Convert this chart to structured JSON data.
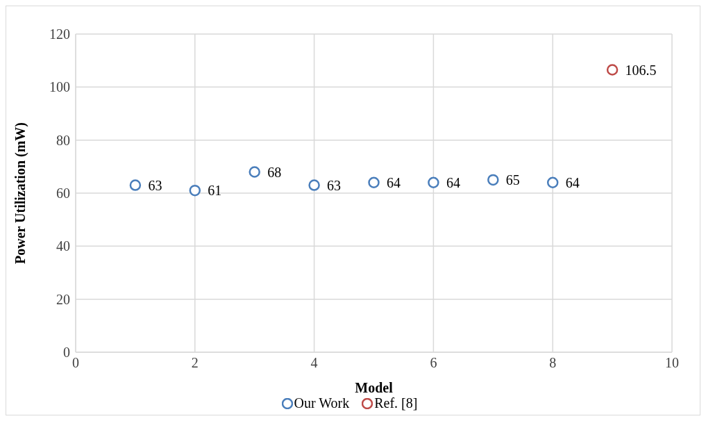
{
  "chart_data": {
    "type": "scatter",
    "xlabel": "Model",
    "ylabel": "Power Utilization (mW)",
    "xlim": [
      0,
      10
    ],
    "xticks": [
      0,
      2,
      4,
      6,
      8,
      10
    ],
    "ylim": [
      0,
      120
    ],
    "yticks": [
      0,
      20,
      40,
      60,
      80,
      100,
      120
    ],
    "grid": true,
    "legend": "bottom",
    "marker": "circle",
    "data_labels": true,
    "series": [
      {
        "name": "Our Work",
        "color": "#4a7ebb",
        "x": [
          1,
          2,
          3,
          4,
          5,
          6,
          7,
          8
        ],
        "values": [
          63,
          61,
          68,
          63,
          64,
          64,
          65,
          64
        ]
      },
      {
        "name": "Ref. [8]",
        "color": "#be4b48",
        "x": [
          9
        ],
        "values": [
          106.5
        ]
      }
    ]
  }
}
